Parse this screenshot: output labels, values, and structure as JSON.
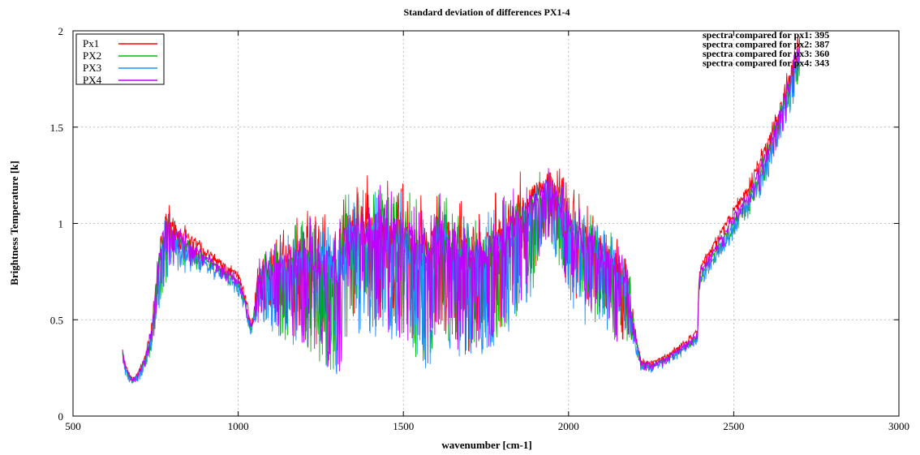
{
  "chart_data": {
    "type": "line",
    "title": "Standard deviation of differences PX1-4",
    "xlabel": "wavenumber [cm-1]",
    "ylabel": "Brightness Temperature [k]",
    "xlim": [
      500,
      3000
    ],
    "ylim": [
      0,
      2
    ],
    "xticks": [
      500,
      1000,
      1500,
      2000,
      2500,
      3000
    ],
    "yticks": [
      0,
      0.5,
      1,
      1.5,
      2
    ],
    "ytick_labels": [
      "0",
      "0.5",
      "1",
      "1.5",
      "2"
    ],
    "grid": true,
    "legend_position": "top-left",
    "series": [
      {
        "name": "Px1",
        "color": "#ff0000",
        "offset": 0.04
      },
      {
        "name": "PX2",
        "color": "#00bb00",
        "offset": -0.02
      },
      {
        "name": "PX3",
        "color": "#1e90ff",
        "offset": -0.04
      },
      {
        "name": "PX4",
        "color": "#c000ff",
        "offset": 0.0
      }
    ],
    "x": [
      650,
      660,
      680,
      700,
      720,
      740,
      760,
      780,
      800,
      850,
      900,
      950,
      1000,
      1020,
      1040,
      1050,
      1060,
      1080,
      1100,
      1150,
      1200,
      1250,
      1280,
      1300,
      1310,
      1320,
      1350,
      1400,
      1450,
      1500,
      1550,
      1580,
      1600,
      1650,
      1700,
      1750,
      1800,
      1850,
      1900,
      1940,
      1960,
      2000,
      2050,
      2100,
      2150,
      2180,
      2200,
      2220,
      2250,
      2300,
      2350,
      2390,
      2395,
      2400,
      2450,
      2500,
      2550,
      2600,
      2650,
      2700
    ],
    "base": [
      0.33,
      0.24,
      0.18,
      0.22,
      0.3,
      0.45,
      0.78,
      0.95,
      0.92,
      0.88,
      0.82,
      0.76,
      0.7,
      0.6,
      0.45,
      0.55,
      0.68,
      0.72,
      0.72,
      0.74,
      0.76,
      0.72,
      0.7,
      0.65,
      0.7,
      0.85,
      0.9,
      0.9,
      0.88,
      0.85,
      0.8,
      0.75,
      0.9,
      0.8,
      0.75,
      0.78,
      0.85,
      0.95,
      1.05,
      1.15,
      1.1,
      0.95,
      0.85,
      0.8,
      0.7,
      0.68,
      0.42,
      0.27,
      0.26,
      0.3,
      0.36,
      0.42,
      0.68,
      0.74,
      0.88,
      1.02,
      1.15,
      1.35,
      1.6,
      1.9
    ],
    "amp": [
      0.05,
      0.03,
      0.02,
      0.03,
      0.05,
      0.1,
      0.2,
      0.25,
      0.15,
      0.1,
      0.05,
      0.05,
      0.05,
      0.05,
      0.03,
      0.05,
      0.2,
      0.2,
      0.25,
      0.35,
      0.4,
      0.45,
      0.45,
      0.45,
      0.5,
      0.45,
      0.45,
      0.45,
      0.45,
      0.5,
      0.5,
      0.5,
      0.45,
      0.45,
      0.45,
      0.45,
      0.45,
      0.4,
      0.35,
      0.25,
      0.25,
      0.35,
      0.35,
      0.3,
      0.35,
      0.3,
      0.06,
      0.03,
      0.03,
      0.03,
      0.03,
      0.03,
      0.05,
      0.05,
      0.05,
      0.06,
      0.08,
      0.1,
      0.12,
      0.12
    ]
  },
  "annotations": [
    "spectra compared for px1: 395",
    "spectra compared for px2: 387",
    "spectra compared for px3: 360",
    "spectra compared for px4: 343"
  ]
}
